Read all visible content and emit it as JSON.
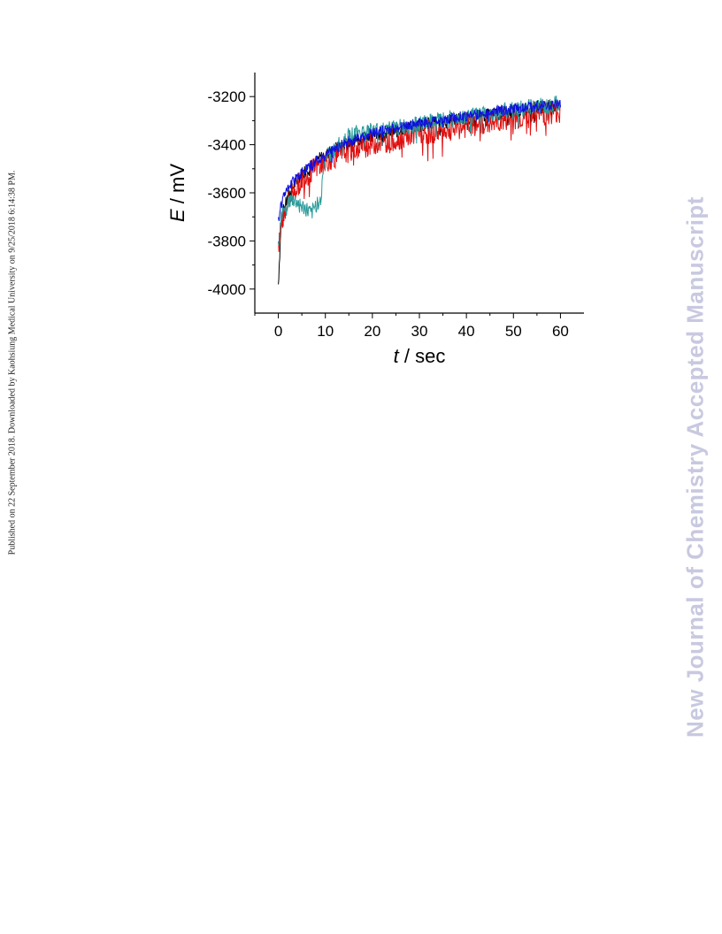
{
  "page": {
    "side_note": "Published on 22 September 2018. Downloaded by Kaohsiung Medical University on 9/25/2018 6:14:38 PM.",
    "watermark": "New Journal of Chemistry Accepted Manuscript"
  },
  "chart_data": {
    "type": "line",
    "title": "",
    "xlabel_symbol": "t",
    "xlabel_unit": " / sec",
    "ylabel_symbol": "E",
    "ylabel_unit": " / mV",
    "xlim": [
      -5,
      65
    ],
    "ylim": [
      -4100,
      -3100
    ],
    "xticks": [
      0,
      10,
      20,
      30,
      40,
      50,
      60
    ],
    "yticks": [
      -4000,
      -3800,
      -3600,
      -3400,
      -3200
    ],
    "xtick_labels": [
      "0",
      "10",
      "20",
      "30",
      "40",
      "50",
      "60"
    ],
    "ytick_labels": [
      "-4000",
      "-3800",
      "-3600",
      "-3400",
      "-3200"
    ],
    "grid": false,
    "legend": "none",
    "series": [
      {
        "color": "#000000",
        "x": [
          0,
          0.5,
          1,
          2,
          3,
          4,
          5,
          6,
          8,
          10,
          12,
          15,
          18,
          20,
          25,
          30,
          35,
          40,
          45,
          50,
          55,
          60
        ],
        "y": [
          -3980,
          -3760,
          -3680,
          -3620,
          -3580,
          -3550,
          -3520,
          -3500,
          -3470,
          -3440,
          -3420,
          -3390,
          -3370,
          -3360,
          -3340,
          -3320,
          -3305,
          -3290,
          -3275,
          -3260,
          -3245,
          -3235
        ],
        "noise": 28
      },
      {
        "color": "#e01010",
        "x": [
          0,
          0.5,
          1,
          2,
          3,
          4,
          5,
          6,
          8,
          10,
          12,
          15,
          18,
          20,
          25,
          30,
          35,
          40,
          45,
          50,
          55,
          60
        ],
        "y": [
          -3850,
          -3760,
          -3700,
          -3640,
          -3600,
          -3570,
          -3545,
          -3525,
          -3495,
          -3470,
          -3450,
          -3425,
          -3410,
          -3395,
          -3375,
          -3355,
          -3340,
          -3325,
          -3310,
          -3295,
          -3275,
          -3260
        ],
        "noise": 50
      },
      {
        "color": "#2a9a9a",
        "x": [
          0,
          0.5,
          1,
          2,
          3,
          4,
          5,
          6,
          7,
          8,
          9,
          10,
          12,
          15,
          18,
          20,
          25,
          30,
          35,
          40,
          45,
          50,
          55,
          60
        ],
        "y": [
          -3820,
          -3700,
          -3660,
          -3640,
          -3630,
          -3640,
          -3660,
          -3670,
          -3690,
          -3650,
          -3620,
          -3450,
          -3420,
          -3360,
          -3345,
          -3340,
          -3330,
          -3315,
          -3300,
          -3285,
          -3270,
          -3255,
          -3240,
          -3225
        ],
        "noise": 35
      },
      {
        "color": "#1010e0",
        "x": [
          0,
          0.5,
          1,
          2,
          3,
          4,
          5,
          6,
          8,
          10,
          12,
          15,
          18,
          20,
          25,
          30,
          35,
          40,
          45,
          50,
          55,
          60
        ],
        "y": [
          -3720,
          -3660,
          -3620,
          -3580,
          -3555,
          -3535,
          -3515,
          -3500,
          -3470,
          -3440,
          -3415,
          -3385,
          -3365,
          -3350,
          -3330,
          -3310,
          -3295,
          -3280,
          -3265,
          -3250,
          -3240,
          -3230
        ],
        "noise": 22
      }
    ]
  }
}
